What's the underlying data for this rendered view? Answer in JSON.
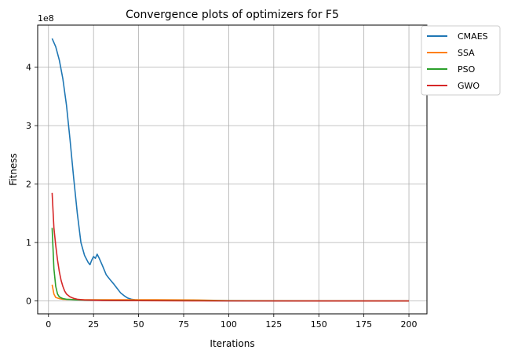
{
  "chart_data": {
    "type": "line",
    "title": "Convergence plots of optimizers for F5",
    "xlabel": "Iterations",
    "ylabel": "Fitness",
    "offset_text": "1e8",
    "xlim": [
      -6,
      210
    ],
    "ylim": [
      -0.22,
      4.72
    ],
    "y_scale_multiplier": 100000000,
    "xticks": [
      0,
      25,
      50,
      75,
      100,
      125,
      150,
      175,
      200
    ],
    "yticks": [
      0,
      1,
      2,
      3,
      4
    ],
    "grid": true,
    "legend": "outside-top-right",
    "series": [
      {
        "name": "CMAES",
        "color": "#1f77b4",
        "points": [
          [
            2,
            4.49
          ],
          [
            4,
            4.35
          ],
          [
            6,
            4.12
          ],
          [
            8,
            3.8
          ],
          [
            10,
            3.35
          ],
          [
            12,
            2.75
          ],
          [
            14,
            2.1
          ],
          [
            16,
            1.5
          ],
          [
            18,
            1.0
          ],
          [
            20,
            0.78
          ],
          [
            22,
            0.66
          ],
          [
            23,
            0.62
          ],
          [
            24,
            0.7
          ],
          [
            25,
            0.76
          ],
          [
            26,
            0.73
          ],
          [
            27,
            0.8
          ],
          [
            28,
            0.74
          ],
          [
            30,
            0.6
          ],
          [
            32,
            0.45
          ],
          [
            34,
            0.37
          ],
          [
            36,
            0.3
          ],
          [
            38,
            0.22
          ],
          [
            40,
            0.14
          ],
          [
            42,
            0.09
          ],
          [
            44,
            0.05
          ],
          [
            46,
            0.03
          ],
          [
            48,
            0.02
          ],
          [
            52,
            0.015
          ],
          [
            60,
            0.01
          ],
          [
            80,
            0.005
          ],
          [
            100,
            0.002
          ],
          [
            200,
            0.0
          ]
        ]
      },
      {
        "name": "SSA",
        "color": "#ff7f0e",
        "points": [
          [
            2,
            0.28
          ],
          [
            3,
            0.12
          ],
          [
            4,
            0.06
          ],
          [
            6,
            0.04
          ],
          [
            8,
            0.03
          ],
          [
            12,
            0.025
          ],
          [
            20,
            0.022
          ],
          [
            40,
            0.02
          ],
          [
            60,
            0.02
          ],
          [
            80,
            0.018
          ],
          [
            100,
            0.005
          ],
          [
            200,
            0.0
          ]
        ]
      },
      {
        "name": "PSO",
        "color": "#2ca02c",
        "points": [
          [
            2,
            1.25
          ],
          [
            3,
            0.55
          ],
          [
            4,
            0.25
          ],
          [
            5,
            0.12
          ],
          [
            6,
            0.07
          ],
          [
            8,
            0.04
          ],
          [
            10,
            0.03
          ],
          [
            15,
            0.02
          ],
          [
            20,
            0.015
          ],
          [
            40,
            0.01
          ],
          [
            80,
            0.005
          ],
          [
            200,
            0.0
          ]
        ]
      },
      {
        "name": "GWO",
        "color": "#d62728",
        "points": [
          [
            2,
            1.85
          ],
          [
            3,
            1.25
          ],
          [
            4,
            0.95
          ],
          [
            5,
            0.7
          ],
          [
            6,
            0.5
          ],
          [
            7,
            0.35
          ],
          [
            8,
            0.25
          ],
          [
            9,
            0.17
          ],
          [
            10,
            0.12
          ],
          [
            12,
            0.07
          ],
          [
            14,
            0.045
          ],
          [
            16,
            0.03
          ],
          [
            20,
            0.018
          ],
          [
            30,
            0.01
          ],
          [
            50,
            0.005
          ],
          [
            80,
            0.002
          ],
          [
            200,
            0.0
          ]
        ]
      }
    ]
  }
}
